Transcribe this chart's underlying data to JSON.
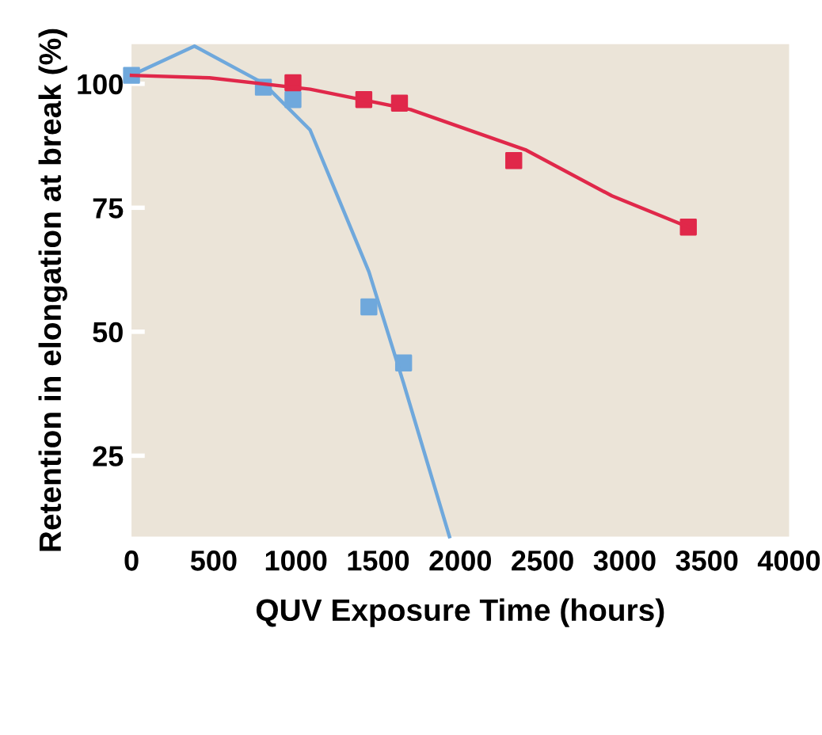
{
  "chart_data": {
    "type": "scatter",
    "xlabel": "QUV Exposure Time (hours)",
    "ylabel": "Retention in elongation at break (%)",
    "xlim": [
      0,
      4000
    ],
    "ylim": [
      8.7,
      108
    ],
    "xticks": [
      0,
      500,
      1000,
      1500,
      2000,
      2500,
      3000,
      3500,
      4000
    ],
    "yticks": [
      25,
      50,
      75,
      100
    ],
    "grid": false,
    "series": [
      {
        "type": "line",
        "marker": "none",
        "color": "#6fa8dc",
        "x": [
          0,
          383,
          802,
          1086,
          1444,
          1655,
          1934
        ],
        "values": [
          101.7,
          107.6,
          100.1,
          90.7,
          62.1,
          39.6,
          8.7
        ]
      },
      {
        "type": "line",
        "marker": "none",
        "color": "#e0284a",
        "x": [
          0,
          474,
          1086,
          1698,
          2402,
          2922,
          3387
        ],
        "values": [
          101.7,
          101.2,
          98.9,
          94.8,
          86.6,
          77.4,
          71.1
        ]
      },
      {
        "marker": "square",
        "color": "#6fa8dc",
        "x": [
          0,
          802,
          982,
          1444,
          1655
        ],
        "values": [
          101.7,
          99.3,
          96.8,
          55.0,
          43.7
        ]
      },
      {
        "marker": "square",
        "color": "#e0284a",
        "x": [
          982,
          1413,
          1630,
          2325,
          3387
        ],
        "values": [
          100.2,
          96.8,
          96.1,
          84.5,
          71.1
        ]
      }
    ]
  }
}
